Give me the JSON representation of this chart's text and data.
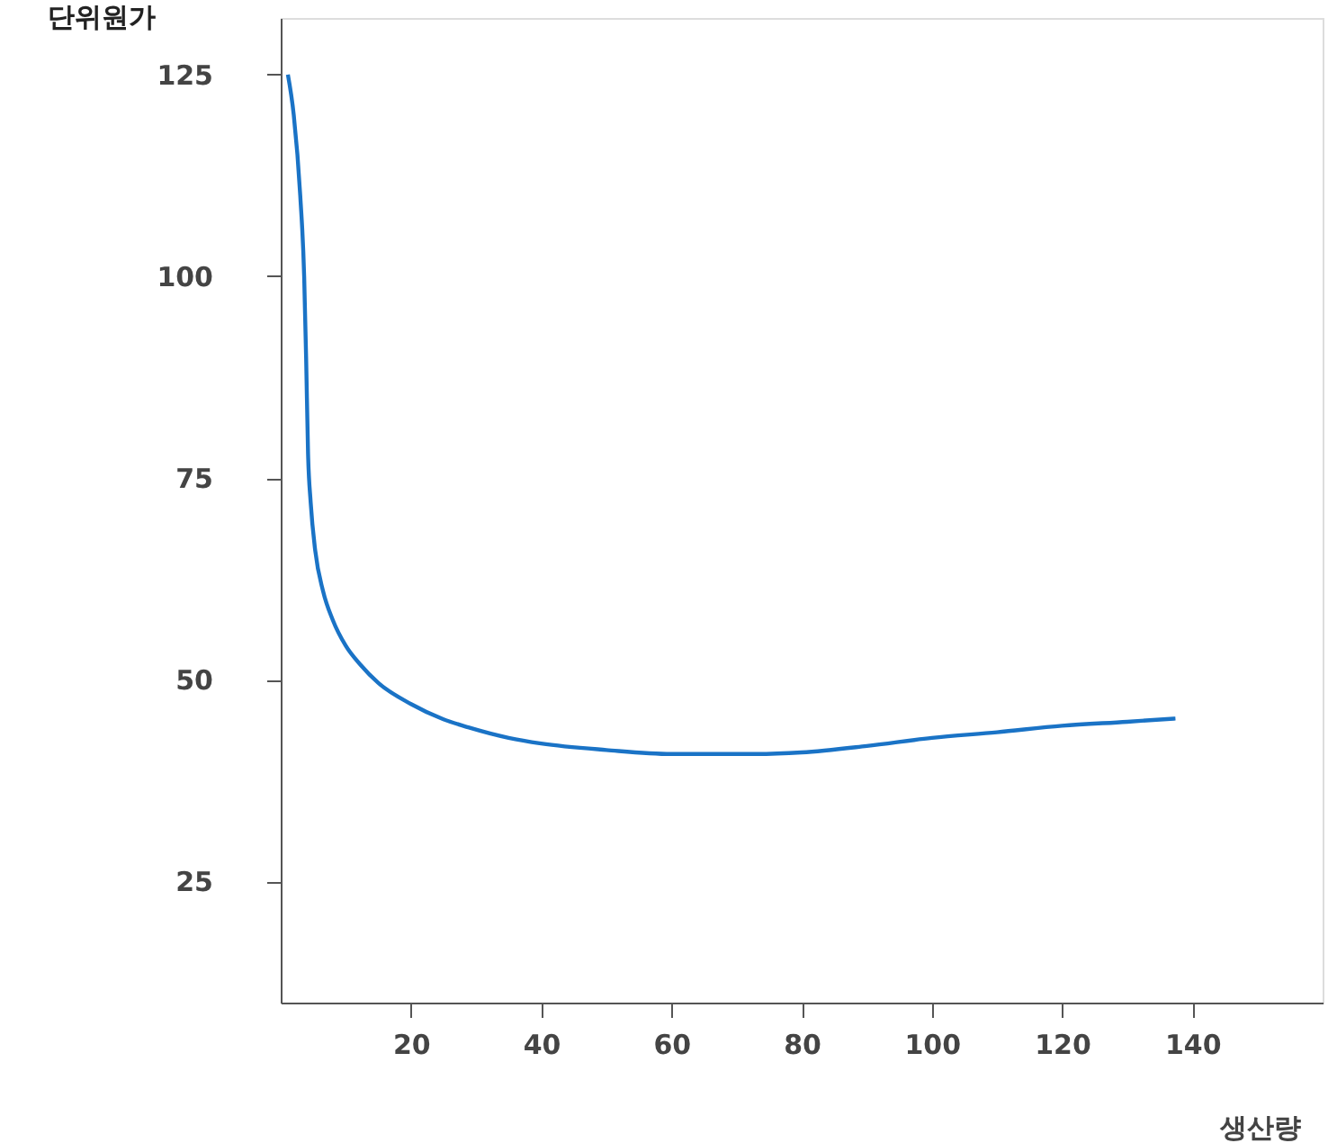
{
  "chart_data": {
    "type": "line",
    "xlabel": "생산량",
    "ylabel": "단위원가",
    "x": [
      1.1,
      2,
      3,
      3.6,
      3.9,
      4.2,
      4.6,
      5.3,
      6.5,
      8,
      10,
      12.2,
      15,
      20,
      25,
      28.8,
      35,
      40,
      50,
      60,
      73,
      80,
      90,
      100,
      110,
      120,
      130,
      137.4
    ],
    "series": [
      {
        "color": "#1a73c6",
        "values": [
          125,
          120,
          110,
          100,
          90,
          78,
          72,
          66,
          61,
          57.4,
          54.2,
          51.9,
          49.6,
          47,
          45.1,
          44.1,
          42.8,
          42.1,
          41.3,
          40.8,
          40.8,
          41,
          41.8,
          42.8,
          43.5,
          44.3,
          44.8,
          45.2
        ]
      }
    ],
    "xlim": [
      0,
      160
    ],
    "ylim": [
      10,
      132
    ],
    "xticks": [
      20,
      40,
      60,
      80,
      100,
      120,
      140
    ],
    "yticks": [
      25,
      50,
      75,
      100,
      125
    ],
    "grid": false,
    "marker": "none",
    "line_style": "solid"
  }
}
